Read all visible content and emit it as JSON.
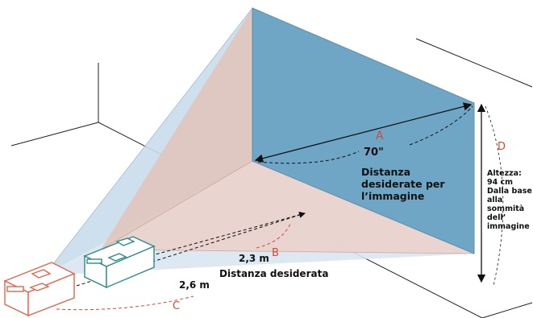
{
  "diagram": {
    "labels": {
      "a": "A",
      "b": "B",
      "c": "C",
      "d": "D",
      "angle": "70\"",
      "desired_image_distance_1": "Distanza",
      "desired_image_distance_2": "desiderate per",
      "desired_image_distance_3": "l’immagine",
      "height_1": "Altezza:",
      "height_2": "94 cm",
      "height_3": "Dalla base",
      "height_4": "alla",
      "height_5": "sommità",
      "height_6": "dell’",
      "height_7": "immagine",
      "dist_near": "2,3 m",
      "dist_far": "2,6 m",
      "desired_distance": "Distanza desiderata"
    },
    "colors": {
      "screen": "#6fa6c6",
      "beam_near": "#e2c5bd",
      "beam_far": "#c9dcec",
      "projector_near": "#2e8a8a",
      "projector_far": "#e0654d",
      "label_red": "#d04a3a"
    }
  }
}
